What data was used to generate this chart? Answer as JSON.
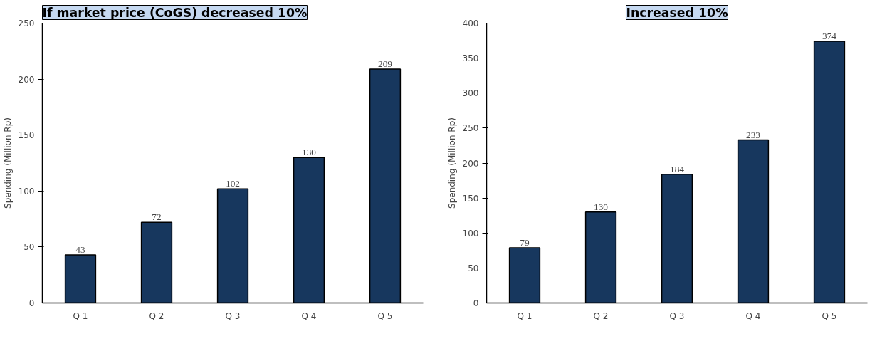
{
  "chart_data": [
    {
      "type": "bar",
      "title": "If market price (CoGS) decreased 10%",
      "ylabel": "Spending (Million Rp)",
      "categories": [
        "Q 1",
        "Q 2",
        "Q 3",
        "Q 4",
        "Q 5"
      ],
      "values": [
        43,
        72,
        102,
        130,
        209
      ],
      "color": "#17375e",
      "ylim": [
        0,
        250
      ],
      "yticks": [
        0,
        50,
        100,
        150,
        200,
        250
      ],
      "data_labels": true,
      "grid": false
    },
    {
      "type": "bar",
      "title": "Increased 10%",
      "ylabel": "Spending (Million Rp)",
      "categories": [
        "Q 1",
        "Q 2",
        "Q 3",
        "Q 4",
        "Q 5"
      ],
      "values": [
        79,
        130,
        184,
        233,
        374
      ],
      "color": "#17375e",
      "ylim": [
        0,
        400
      ],
      "yticks": [
        0,
        50,
        100,
        150,
        200,
        250,
        300,
        350,
        400
      ],
      "data_labels": true,
      "grid": false
    }
  ]
}
